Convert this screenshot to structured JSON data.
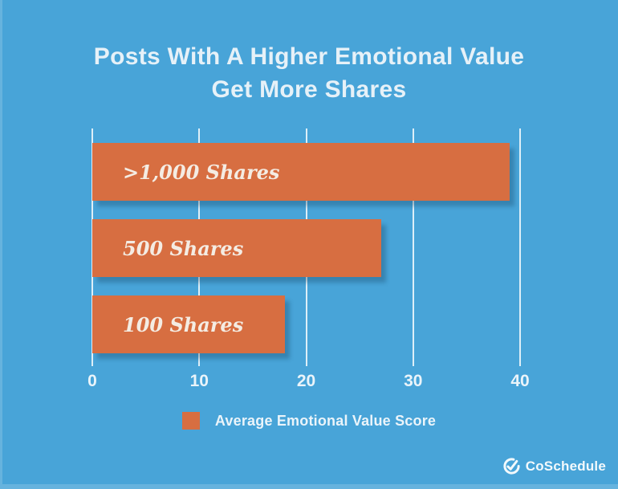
{
  "title": {
    "line1": "Posts With A Higher Emotional Value",
    "line2": "Get More Shares"
  },
  "chart_data": {
    "type": "bar",
    "orientation": "horizontal",
    "title": "Posts With A Higher Emotional Value Get More Shares",
    "categories": [
      ">1,000 Shares",
      "500 Shares",
      "100 Shares"
    ],
    "series": [
      {
        "name": "Average Emotional Value Score",
        "values": [
          39,
          27,
          18
        ]
      }
    ],
    "xlabel": "",
    "ylabel": "",
    "xlim": [
      0,
      40
    ],
    "x_ticks": [
      0,
      10,
      20,
      30,
      40
    ],
    "grid": true,
    "legend_position": "bottom",
    "bar_color": "#d76e41",
    "background_color": "#48a4d8",
    "bar_labels_inside": true
  },
  "legend": {
    "label": "Average Emotional Value Score",
    "swatch_color": "#d76e41"
  },
  "branding": {
    "name": "CoSchedule"
  }
}
